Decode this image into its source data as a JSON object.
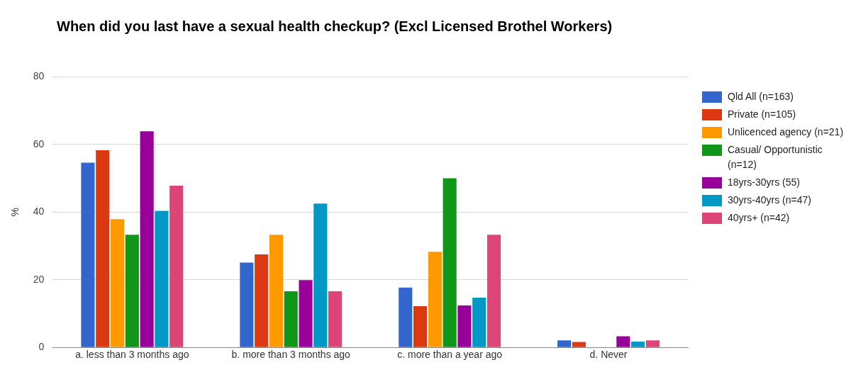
{
  "chart_data": {
    "type": "bar",
    "title": "When did you last have a sexual health checkup? (Excl Licensed Brothel Workers)",
    "ylabel": "%",
    "categories": [
      "a. less than 3 months ago",
      "b. more than 3 months ago",
      "c. more than a year ago",
      "d. Never"
    ],
    "series": [
      {
        "name": "Qld All (n=163)",
        "color": "#3366cc",
        "values": [
          54.6,
          25.1,
          17.7,
          2.1
        ]
      },
      {
        "name": "Private (n=105)",
        "color": "#dc3912",
        "values": [
          58.3,
          27.5,
          12.2,
          1.6
        ]
      },
      {
        "name": "Unlicenced agency (n=21)",
        "color": "#ff9900",
        "values": [
          37.9,
          33.3,
          28.3,
          0
        ]
      },
      {
        "name": "Casual/ Opportunistic (n=12)",
        "color": "#109618",
        "values": [
          33.3,
          16.6,
          50.0,
          0
        ]
      },
      {
        "name": "18yrs-30yrs (55)",
        "color": "#990099",
        "values": [
          63.9,
          19.9,
          12.4,
          3.3
        ]
      },
      {
        "name": "30yrs-40yrs (n=47)",
        "color": "#0099c6",
        "values": [
          40.4,
          42.5,
          14.7,
          1.7
        ]
      },
      {
        "name": "40yrs+ (n=42)",
        "color": "#dd4477",
        "values": [
          47.8,
          16.6,
          33.3,
          2.1
        ]
      }
    ],
    "ylim": [
      0,
      80
    ],
    "yticks": [
      0,
      20,
      40,
      60,
      80
    ],
    "grid": "y",
    "legend": "right"
  }
}
